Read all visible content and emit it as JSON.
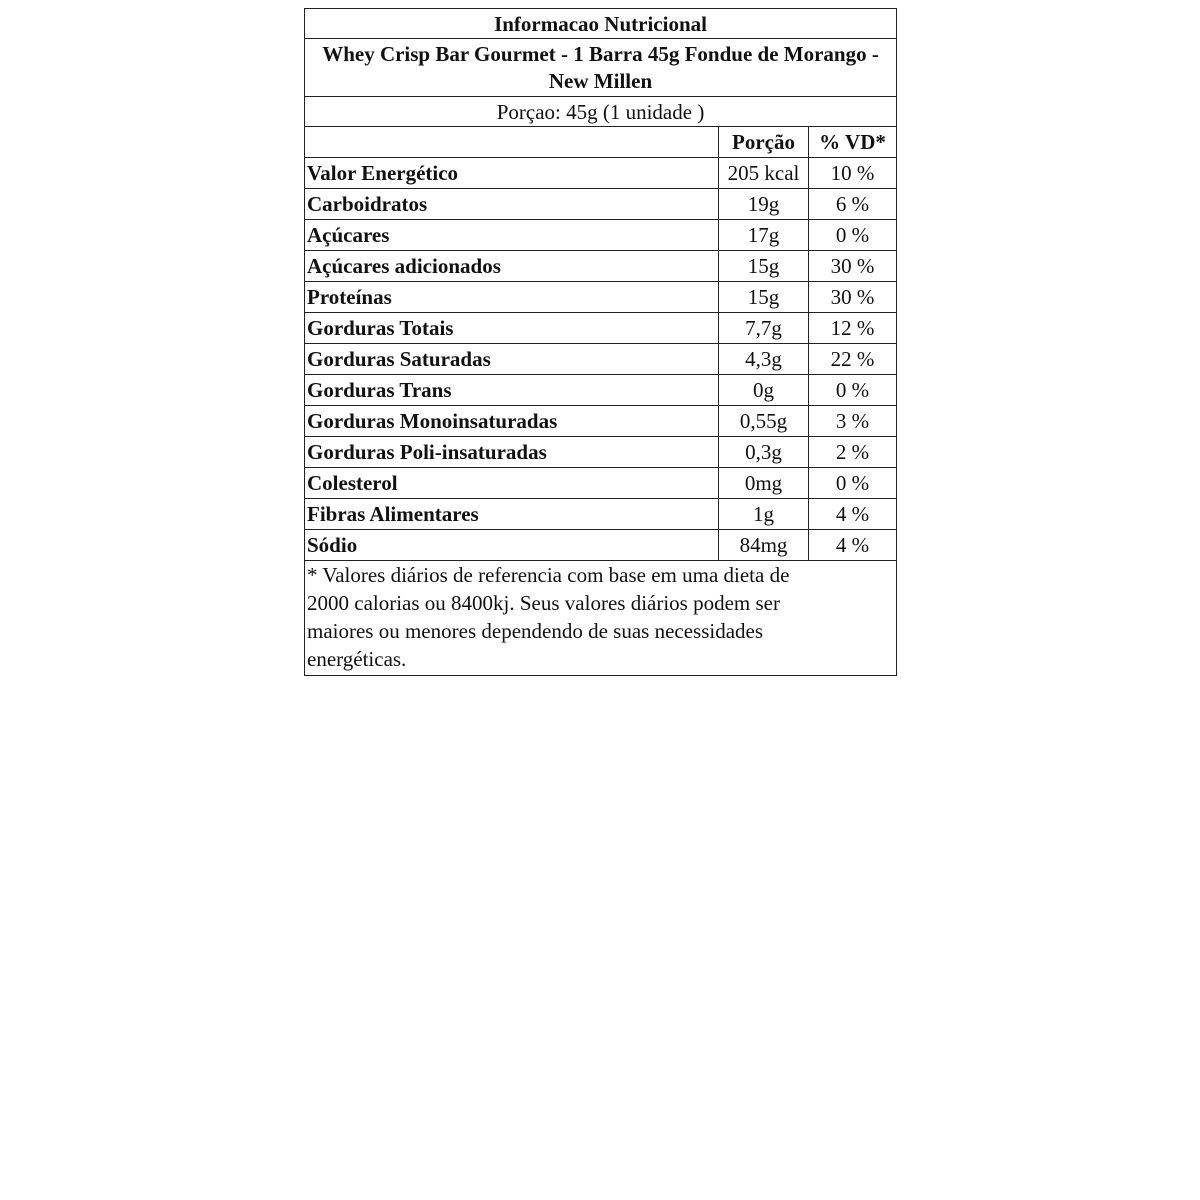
{
  "title": "Informacao Nutricional",
  "product": "Whey Crisp Bar Gourmet - 1 Barra 45g Fondue de Morango - New Millen",
  "serving": "Porçao: 45g (1 unidade )",
  "headers": {
    "portion": "Porção",
    "dv": "% VD*"
  },
  "rows": [
    {
      "name": "Valor Energético",
      "portion": "205 kcal",
      "dv": "10 %"
    },
    {
      "name": "Carboidratos",
      "portion": "19g",
      "dv": "6 %"
    },
    {
      "name": "Açúcares",
      "portion": "17g",
      "dv": "0 %"
    },
    {
      "name": "Açúcares adicionados",
      "portion": "15g",
      "dv": "30 %"
    },
    {
      "name": "Proteínas",
      "portion": "15g",
      "dv": "30 %"
    },
    {
      "name": "Gorduras Totais",
      "portion": "7,7g",
      "dv": "12 %"
    },
    {
      "name": "Gorduras Saturadas",
      "portion": "4,3g",
      "dv": "22 %"
    },
    {
      "name": "Gorduras Trans",
      "portion": "0g",
      "dv": "0 %"
    },
    {
      "name": "Gorduras Monoinsaturadas",
      "portion": "0,55g",
      "dv": "3 %"
    },
    {
      "name": "Gorduras Poli-insaturadas",
      "portion": "0,3g",
      "dv": "2 %"
    },
    {
      "name": "Colesterol",
      "portion": "0mg",
      "dv": "0 %"
    },
    {
      "name": "Fibras Alimentares",
      "portion": "1g",
      "dv": "4 %"
    },
    {
      "name": "Sódio",
      "portion": "84mg",
      "dv": "4 %"
    }
  ],
  "footnote_lines": [
    "* Valores diários de referencia com base em uma dieta de",
    "2000 calorias ou 8400kj. Seus valores diários podem ser",
    "maiores ou menores dependendo de suas necessidades",
    "energéticas."
  ]
}
